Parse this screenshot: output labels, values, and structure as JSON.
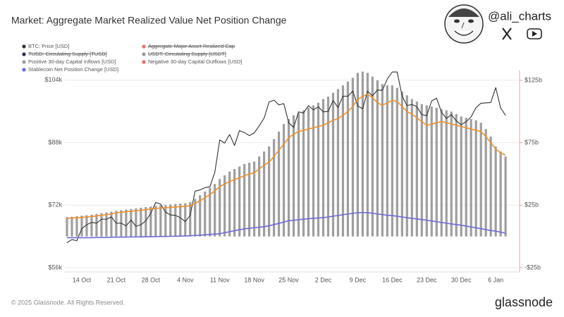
{
  "chart_data": {
    "type": "combo",
    "title": "Market: Aggregate Market Realized Value Net Position Change",
    "categories": [
      null,
      null,
      null,
      "14 Oct",
      null,
      null,
      null,
      null,
      null,
      null,
      "21 Oct",
      null,
      null,
      null,
      null,
      null,
      null,
      "28 Oct",
      null,
      null,
      null,
      null,
      null,
      null,
      "4 Nov",
      null,
      null,
      null,
      null,
      null,
      null,
      "11 Nov",
      null,
      null,
      null,
      null,
      null,
      null,
      "18 Nov",
      null,
      null,
      null,
      null,
      null,
      null,
      "25 Nov",
      null,
      null,
      null,
      null,
      null,
      null,
      "2 Dec",
      null,
      null,
      null,
      null,
      null,
      null,
      "9 Dec",
      null,
      null,
      null,
      null,
      null,
      null,
      "16 Dec",
      null,
      null,
      null,
      null,
      null,
      null,
      "23 Dec",
      null,
      null,
      null,
      null,
      null,
      null,
      "30 Dec",
      null,
      null,
      null,
      null,
      null,
      null,
      "6 Jan",
      null,
      null
    ],
    "series": [
      {
        "name": "BTC: Price [USD]",
        "type": "line",
        "color": "#333333",
        "values": [
          62400,
          63200,
          62900,
          66000,
          67000,
          67600,
          67400,
          68400,
          68400,
          69000,
          67400,
          67400,
          66700,
          68200,
          66600,
          67000,
          68000,
          69900,
          72700,
          72300,
          70200,
          69500,
          69400,
          68800,
          67800,
          69400,
          75600,
          75900,
          76500,
          76700,
          80400,
          88700,
          87900,
          90100,
          87300,
          91100,
          90600,
          89800,
          90500,
          92300,
          94300,
          98400,
          98900,
          97700,
          98000,
          93100,
          91900,
          95900,
          95600,
          97500,
          96400,
          97200,
          95900,
          96000,
          98800,
          97000,
          99900,
          99900,
          101200,
          97400,
          96700,
          101200,
          100000,
          101500,
          101400,
          104300,
          106100,
          106100,
          100000,
          97500,
          97800,
          97200,
          95200,
          94900,
          98700,
          99400,
          95800,
          94200,
          95200,
          93600,
          92600,
          93400,
          94600,
          97000,
          98100,
          98200,
          98300,
          102100,
          96900,
          95000
        ]
      },
      {
        "name": "Aggregate Major Asset Realized Cap",
        "color": "#e8736b",
        "struck": true
      },
      {
        "name": "TUSD: Circulating Supply [TUSD]",
        "color": "#2b2b55",
        "struck": true
      },
      {
        "name": "USDT: Circulating Supply [USDT]",
        "color": "#9a9a9a",
        "struck": true
      },
      {
        "name": "Positive 30-day Capital Inflows [USD]",
        "type": "bar",
        "axis": "y2",
        "color": "#9e9e9e",
        "values": [
          15.5,
          15.8,
          16.2,
          16.6,
          17.0,
          17.4,
          18.0,
          18.6,
          19.2,
          19.8,
          20.5,
          21,
          21.5,
          22,
          22.5,
          23,
          23.5,
          24,
          24.5,
          25,
          25.3,
          25.6,
          26,
          26.3,
          26.6,
          27.5,
          30,
          33,
          36,
          39,
          42,
          46,
          49,
          52,
          54,
          56,
          58,
          59,
          60,
          64,
          68,
          72,
          78,
          84,
          90,
          94,
          97,
          99,
          101,
          103,
          105,
          107,
          110,
          112,
          115,
          118,
          121,
          124,
          127,
          131,
          132,
          131,
          128,
          125,
          122,
          121,
          121,
          119,
          116,
          113,
          110,
          108,
          106,
          105,
          104,
          103,
          102,
          101,
          100,
          98,
          96,
          95,
          94,
          93,
          91,
          86,
          80,
          72,
          68,
          64
        ]
      },
      {
        "name": "Negative 30-day Capital Outflows [USD]",
        "color": "#e86b6b"
      },
      {
        "name": "Stablecoin Net Position Change [USD]",
        "type": "line",
        "axis": "y2",
        "color": "#6b6bd6",
        "values": [
          -1,
          -1,
          -1,
          -1,
          -1,
          -1,
          -0.8,
          -0.8,
          -0.8,
          -0.6,
          -0.6,
          -0.5,
          -0.5,
          -0.4,
          -0.4,
          -0.3,
          -0.3,
          -0.2,
          -0.1,
          0,
          0,
          0.1,
          0.2,
          0.3,
          0.4,
          0.6,
          0.8,
          1.0,
          1.3,
          1.6,
          1.9,
          2.2,
          3,
          3.8,
          4.6,
          5.4,
          6,
          6.6,
          7.0,
          7.4,
          7.8,
          8.5,
          9.5,
          10.5,
          11.5,
          12.6,
          13,
          13.4,
          13.8,
          14.2,
          14.5,
          14.8,
          15,
          15.6,
          16.2,
          16.8,
          17.4,
          18,
          18.5,
          19,
          19.2,
          19,
          18.6,
          18,
          17.5,
          17,
          16.7,
          16.2,
          15.6,
          15,
          14.5,
          14,
          13.5,
          13,
          12.4,
          11.8,
          11.2,
          10.6,
          10,
          9.5,
          9,
          8.3,
          7.6,
          6.9,
          6.2,
          5.5,
          4.8,
          4.3,
          3.4,
          2.6
        ]
      },
      {
        "type": "line",
        "axis": "y2",
        "color": "#f0902a",
        "values": [
          14.5,
          14.8,
          15.0,
          15.3,
          15.6,
          16.0,
          16.5,
          17.0,
          17.5,
          18.0,
          19.0,
          19.4,
          19.8,
          20.2,
          20.6,
          21.0,
          21.5,
          22.0,
          22.5,
          22.8,
          23.0,
          23.3,
          23.6,
          23.8,
          24.0,
          24.8,
          26.5,
          28.5,
          31,
          33.5,
          36.5,
          40,
          42,
          44,
          45.5,
          47,
          48.5,
          50,
          51,
          54,
          57,
          59.5,
          64,
          69,
          74,
          79,
          82,
          84,
          85,
          86,
          87,
          88,
          89,
          91,
          93,
          94.5,
          97,
          100,
          104,
          110,
          112,
          114,
          111,
          107,
          105,
          107,
          109,
          108,
          104,
          100,
          98,
          95,
          92,
          89,
          90,
          91,
          92,
          91,
          90,
          89,
          88,
          87,
          86,
          85,
          84,
          80,
          75,
          70,
          67,
          65
        ]
      }
    ],
    "ylim": [
      56000,
      106500
    ],
    "yticks": [
      {
        "value": 56000,
        "label": "$56k"
      },
      {
        "value": 72000,
        "label": "$72k"
      },
      {
        "value": 88000,
        "label": "$88k"
      },
      {
        "value": 104000,
        "label": "$104k"
      }
    ],
    "y2lim": [
      -25,
      132.9
    ],
    "y2ticks": [
      {
        "value": -25,
        "label": "-$25b"
      },
      {
        "value": 25,
        "label": "$25b"
      },
      {
        "value": 75,
        "label": "$75b"
      },
      {
        "value": 125,
        "label": "$125b"
      }
    ],
    "grid": true
  },
  "watermark": {
    "handle": "@ali_charts"
  },
  "footer": {
    "copyright": "© 2025 Glassnode. All Rights Reserved.",
    "brand": "glassnode"
  }
}
